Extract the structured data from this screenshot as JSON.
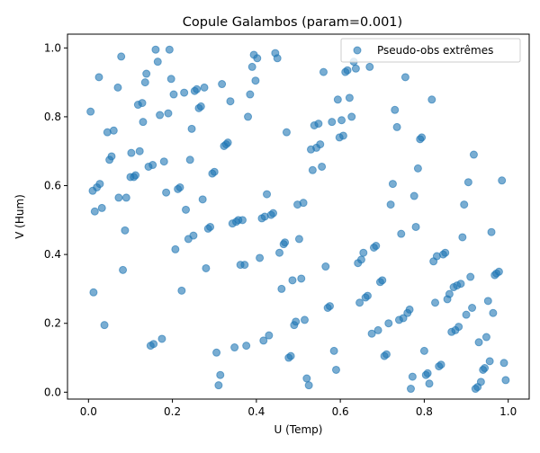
{
  "chart_data": {
    "type": "scatter",
    "title": "Copule Galambos (param=0.001)",
    "xlabel": "U (Temp)",
    "ylabel": "V (Hum)",
    "xlim": [
      -0.05,
      1.05
    ],
    "ylim": [
      -0.02,
      1.04
    ],
    "xticks": [
      "0.0",
      "0.2",
      "0.4",
      "0.6",
      "0.8",
      "1.0"
    ],
    "yticks": [
      "0.0",
      "0.2",
      "0.4",
      "0.6",
      "0.8",
      "1.0"
    ],
    "grid": false,
    "legend_position": "top-right",
    "series": [
      {
        "name": "Pseudo-obs extrêmes",
        "color": "#1f77b4",
        "marker": "circle",
        "points": [
          [
            0.005,
            0.815
          ],
          [
            0.01,
            0.585
          ],
          [
            0.012,
            0.29
          ],
          [
            0.015,
            0.525
          ],
          [
            0.02,
            0.595
          ],
          [
            0.025,
            0.915
          ],
          [
            0.027,
            0.605
          ],
          [
            0.032,
            0.535
          ],
          [
            0.038,
            0.195
          ],
          [
            0.045,
            0.755
          ],
          [
            0.05,
            0.675
          ],
          [
            0.055,
            0.685
          ],
          [
            0.06,
            0.76
          ],
          [
            0.07,
            0.885
          ],
          [
            0.072,
            0.565
          ],
          [
            0.078,
            0.975
          ],
          [
            0.082,
            0.355
          ],
          [
            0.087,
            0.47
          ],
          [
            0.09,
            0.565
          ],
          [
            0.1,
            0.625
          ],
          [
            0.102,
            0.695
          ],
          [
            0.108,
            0.625
          ],
          [
            0.112,
            0.63
          ],
          [
            0.118,
            0.835
          ],
          [
            0.122,
            0.7
          ],
          [
            0.128,
            0.84
          ],
          [
            0.13,
            0.785
          ],
          [
            0.135,
            0.9
          ],
          [
            0.138,
            0.925
          ],
          [
            0.143,
            0.655
          ],
          [
            0.148,
            0.135
          ],
          [
            0.153,
            0.66
          ],
          [
            0.155,
            0.14
          ],
          [
            0.16,
            0.995
          ],
          [
            0.165,
            0.96
          ],
          [
            0.17,
            0.805
          ],
          [
            0.175,
            0.155
          ],
          [
            0.18,
            0.67
          ],
          [
            0.185,
            0.58
          ],
          [
            0.19,
            0.81
          ],
          [
            0.193,
            0.995
          ],
          [
            0.197,
            0.91
          ],
          [
            0.203,
            0.865
          ],
          [
            0.207,
            0.415
          ],
          [
            0.213,
            0.59
          ],
          [
            0.218,
            0.595
          ],
          [
            0.222,
            0.295
          ],
          [
            0.228,
            0.87
          ],
          [
            0.232,
            0.53
          ],
          [
            0.238,
            0.445
          ],
          [
            0.242,
            0.675
          ],
          [
            0.246,
            0.765
          ],
          [
            0.25,
            0.455
          ],
          [
            0.253,
            0.875
          ],
          [
            0.258,
            0.88
          ],
          [
            0.263,
            0.825
          ],
          [
            0.268,
            0.83
          ],
          [
            0.272,
            0.56
          ],
          [
            0.276,
            0.885
          ],
          [
            0.28,
            0.36
          ],
          [
            0.285,
            0.475
          ],
          [
            0.29,
            0.48
          ],
          [
            0.295,
            0.635
          ],
          [
            0.3,
            0.64
          ],
          [
            0.305,
            0.115
          ],
          [
            0.31,
            0.02
          ],
          [
            0.314,
            0.05
          ],
          [
            0.318,
            0.895
          ],
          [
            0.323,
            0.715
          ],
          [
            0.328,
            0.72
          ],
          [
            0.332,
            0.725
          ],
          [
            0.338,
            0.845
          ],
          [
            0.343,
            0.49
          ],
          [
            0.348,
            0.13
          ],
          [
            0.352,
            0.495
          ],
          [
            0.357,
            0.5
          ],
          [
            0.362,
            0.37
          ],
          [
            0.367,
            0.5
          ],
          [
            0.372,
            0.37
          ],
          [
            0.376,
            0.135
          ],
          [
            0.38,
            0.8
          ],
          [
            0.385,
            0.865
          ],
          [
            0.39,
            0.945
          ],
          [
            0.394,
            0.98
          ],
          [
            0.398,
            0.905
          ],
          [
            0.402,
            0.97
          ],
          [
            0.408,
            0.39
          ],
          [
            0.413,
            0.505
          ],
          [
            0.417,
            0.15
          ],
          [
            0.42,
            0.51
          ],
          [
            0.425,
            0.575
          ],
          [
            0.43,
            0.165
          ],
          [
            0.435,
            0.515
          ],
          [
            0.44,
            0.52
          ],
          [
            0.445,
            0.985
          ],
          [
            0.45,
            0.97
          ],
          [
            0.455,
            0.405
          ],
          [
            0.46,
            0.3
          ],
          [
            0.465,
            0.43
          ],
          [
            0.468,
            0.435
          ],
          [
            0.472,
            0.755
          ],
          [
            0.477,
            0.1
          ],
          [
            0.482,
            0.105
          ],
          [
            0.486,
            0.325
          ],
          [
            0.49,
            0.195
          ],
          [
            0.494,
            0.205
          ],
          [
            0.498,
            0.545
          ],
          [
            0.502,
            0.445
          ],
          [
            0.507,
            0.33
          ],
          [
            0.512,
            0.55
          ],
          [
            0.515,
            0.21
          ],
          [
            0.52,
            0.04
          ],
          [
            0.525,
            0.02
          ],
          [
            0.53,
            0.705
          ],
          [
            0.534,
            0.645
          ],
          [
            0.538,
            0.775
          ],
          [
            0.543,
            0.71
          ],
          [
            0.548,
            0.78
          ],
          [
            0.552,
            0.72
          ],
          [
            0.556,
            0.655
          ],
          [
            0.56,
            0.93
          ],
          [
            0.565,
            0.365
          ],
          [
            0.57,
            0.245
          ],
          [
            0.575,
            0.25
          ],
          [
            0.58,
            0.785
          ],
          [
            0.585,
            0.12
          ],
          [
            0.59,
            0.065
          ],
          [
            0.594,
            0.85
          ],
          [
            0.598,
            0.74
          ],
          [
            0.603,
            0.79
          ],
          [
            0.607,
            0.745
          ],
          [
            0.612,
            0.93
          ],
          [
            0.617,
            0.935
          ],
          [
            0.622,
            0.855
          ],
          [
            0.627,
            0.8
          ],
          [
            0.632,
            0.96
          ],
          [
            0.637,
            0.94
          ],
          [
            0.642,
            0.375
          ],
          [
            0.646,
            0.26
          ],
          [
            0.65,
            0.385
          ],
          [
            0.655,
            0.405
          ],
          [
            0.66,
            0.275
          ],
          [
            0.665,
            0.28
          ],
          [
            0.67,
            0.945
          ],
          [
            0.675,
            0.17
          ],
          [
            0.68,
            0.42
          ],
          [
            0.685,
            0.425
          ],
          [
            0.69,
            0.18
          ],
          [
            0.695,
            0.32
          ],
          [
            0.7,
            0.325
          ],
          [
            0.705,
            0.105
          ],
          [
            0.71,
            0.11
          ],
          [
            0.715,
            0.2
          ],
          [
            0.72,
            0.545
          ],
          [
            0.725,
            0.605
          ],
          [
            0.73,
            0.82
          ],
          [
            0.735,
            0.77
          ],
          [
            0.74,
            0.21
          ],
          [
            0.745,
            0.46
          ],
          [
            0.75,
            0.215
          ],
          [
            0.755,
            0.915
          ],
          [
            0.76,
            0.23
          ],
          [
            0.765,
            0.24
          ],
          [
            0.768,
            0.01
          ],
          [
            0.772,
            0.045
          ],
          [
            0.776,
            0.57
          ],
          [
            0.78,
            0.48
          ],
          [
            0.785,
            0.65
          ],
          [
            0.79,
            0.735
          ],
          [
            0.794,
            0.74
          ],
          [
            0.8,
            0.12
          ],
          [
            0.804,
            0.05
          ],
          [
            0.808,
            0.055
          ],
          [
            0.812,
            0.025
          ],
          [
            0.818,
            0.85
          ],
          [
            0.822,
            0.38
          ],
          [
            0.826,
            0.26
          ],
          [
            0.83,
            0.395
          ],
          [
            0.835,
            0.075
          ],
          [
            0.84,
            0.08
          ],
          [
            0.845,
            0.4
          ],
          [
            0.85,
            0.405
          ],
          [
            0.855,
            0.27
          ],
          [
            0.86,
            0.285
          ],
          [
            0.865,
            0.175
          ],
          [
            0.87,
            0.305
          ],
          [
            0.874,
            0.18
          ],
          [
            0.878,
            0.31
          ],
          [
            0.882,
            0.19
          ],
          [
            0.887,
            0.315
          ],
          [
            0.891,
            0.45
          ],
          [
            0.895,
            0.545
          ],
          [
            0.9,
            0.225
          ],
          [
            0.905,
            0.61
          ],
          [
            0.91,
            0.335
          ],
          [
            0.914,
            0.245
          ],
          [
            0.918,
            0.69
          ],
          [
            0.922,
            0.01
          ],
          [
            0.927,
            0.015
          ],
          [
            0.93,
            0.145
          ],
          [
            0.935,
            0.03
          ],
          [
            0.94,
            0.065
          ],
          [
            0.944,
            0.07
          ],
          [
            0.948,
            0.16
          ],
          [
            0.952,
            0.265
          ],
          [
            0.956,
            0.09
          ],
          [
            0.96,
            0.465
          ],
          [
            0.964,
            0.23
          ],
          [
            0.968,
            0.34
          ],
          [
            0.972,
            0.345
          ],
          [
            0.978,
            0.35
          ],
          [
            0.985,
            0.615
          ],
          [
            0.99,
            0.085
          ],
          [
            0.994,
            0.035
          ]
        ]
      }
    ]
  }
}
